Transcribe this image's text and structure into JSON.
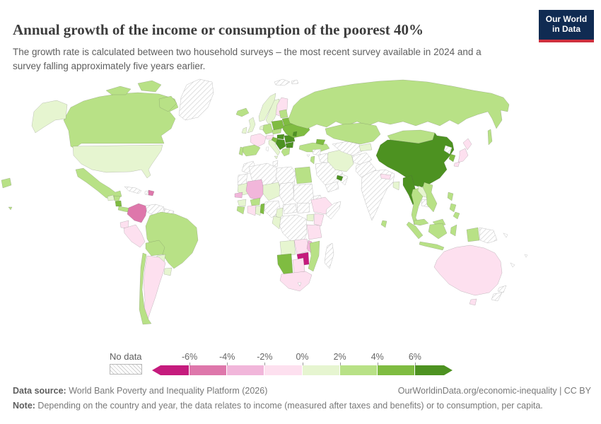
{
  "header": {
    "title": "Annual growth of the income or consumption of the poorest 40%",
    "subtitle": "The growth rate is calculated between two household surveys – the most recent survey available in 2024 and a survey falling approximately five years earlier.",
    "logo_line1": "Our World",
    "logo_line2": "in Data",
    "logo_bg": "#102b52",
    "logo_accent": "#cf303e"
  },
  "legend": {
    "no_data_label": "No data",
    "tick_labels": [
      "-6%",
      "-4%",
      "-2%",
      "0%",
      "2%",
      "4%",
      "6%"
    ]
  },
  "chart_data": {
    "type": "choropleth-map",
    "title": "Annual growth of the income or consumption of the poorest 40%",
    "unit": "% per year",
    "bin_edges_percent": [
      -6,
      -4,
      -2,
      0,
      2,
      4,
      6
    ],
    "bins": [
      "m6",
      "m6_m4",
      "m4_m2",
      "m2_0",
      "p0_2",
      "p2_4",
      "p4_6",
      "p6"
    ],
    "palette": {
      "m6": "#c51b7d",
      "m6_m4": "#de77ab",
      "m4_m2": "#f1b6da",
      "m2_0": "#fde0ef",
      "p0_2": "#e6f5d0",
      "p2_4": "#b8e186",
      "p4_6": "#7fbc41",
      "p6": "#4d9221",
      "nodata": "hatched-white"
    },
    "regions": {
      "greenland": "nodata",
      "canada": "p2_4",
      "canada-arctic-1": "p2_4",
      "canada-arctic-2": "p2_4",
      "canada-baffin": "p2_4",
      "alaska": "p0_2",
      "usa": "p0_2",
      "hawaii": "p2_4",
      "mexico": "p2_4",
      "guatemala": "p0_2",
      "honduras": "p2_4",
      "nicaragua": "p4_6",
      "costa-rica-panama": "p2_4",
      "cuba": "nodata",
      "haiti": "nodata",
      "dominican-republic": "m6_m4",
      "colombia": "m6_m4",
      "venezuela": "nodata",
      "guyanas": "nodata",
      "ecuador": "m2_0",
      "peru": "m2_0",
      "brazil": "p2_4",
      "bolivia": "p2_4",
      "paraguay": "p0_2",
      "uruguay": "p0_2",
      "argentina": "m2_0",
      "chile": "p2_4",
      "iceland": "p2_4",
      "norway": "p0_2",
      "sweden": "p0_2",
      "finland": "m2_0",
      "svalbard": "nodata",
      "united-kingdom": "p0_2",
      "ireland": "p0_2",
      "france": "m2_0",
      "spain": "p2_4",
      "portugal": "p2_4",
      "germany": "p2_4",
      "benelux": "p0_2",
      "italy": "p0_2",
      "switzerland-austria": "m2_0",
      "czechia-slovakia": "p2_4",
      "poland": "p4_6",
      "hungary": "p6",
      "romania": "p6",
      "serbia-balkans": "p6",
      "bulgaria": "p6",
      "croatia": "p4_6",
      "greece": "p2_4",
      "ukraine": "p4_6",
      "moldova": "p6",
      "belarus": "p4_6",
      "baltics": "p2_4",
      "russia": "p2_4",
      "sakhalin": "p2_4",
      "russia-west-fragment": "p2_4",
      "turkey": "p2_4",
      "caucasus": "p4_6",
      "syria": "nodata",
      "iraq": "nodata",
      "israel-jordan": "p2_4",
      "saudi-arabia": "nodata",
      "yemen": "nodata",
      "oman": "nodata",
      "uae": "p6",
      "iran": "p0_2",
      "turkmenistan-uzbekistan": "nodata",
      "kyrgyzstan-tajikistan": "p0_2",
      "kazakhstan": "p2_4",
      "afghanistan": "nodata",
      "pakistan": "nodata",
      "india": "nodata",
      "nepal": "m2_0",
      "bangladesh": "p0_2",
      "sri-lanka": "p2_4",
      "china": "p6",
      "hainan": "p6",
      "mongolia": "p2_4",
      "myanmar": "p6",
      "thailand": "p2_4",
      "laos": "p0_2",
      "cambodia": "nodata",
      "vietnam": "p2_4",
      "north-korea": "nodata",
      "south-korea": "p4_6",
      "japan-hokkaido": "m2_0",
      "japan-honshu": "m2_0",
      "japan-kyushu": "m2_0",
      "philippines-luzon": "p2_4",
      "philippines-visayas": "p2_4",
      "philippines-mindanao": "p2_4",
      "malaysia": "p2_4",
      "malaysia-borneo": "p2_4",
      "indonesia-sumatra": "p2_4",
      "indonesia-java": "p2_4",
      "indonesia-kalimantan": "p2_4",
      "indonesia-sulawesi": "p2_4",
      "indonesia-west-papua": "p2_4",
      "papua-new-guinea": "nodata",
      "australia": "m2_0",
      "tasmania": "m2_0",
      "new-zealand-north": "nodata",
      "new-zealand-south": "nodata",
      "morocco": "nodata",
      "western-sahara": "nodata",
      "algeria": "nodata",
      "tunisia": "nodata",
      "libya": "nodata",
      "egypt": "p2_4",
      "mauritania": "p0_2",
      "mali": "m4_m2",
      "niger": "p0_2",
      "chad": "nodata",
      "sudan": "nodata",
      "eritrea": "nodata",
      "senegal": "m4_m2",
      "guinea": "p0_2",
      "sierra-leone-liberia": "p2_4",
      "cote-divoire": "m2_0",
      "burkina-faso": "p2_4",
      "ghana": "p0_2",
      "togo-benin": "p4_6",
      "nigeria": "nodata",
      "cameroon": "p0_2",
      "central-african-republic": "nodata",
      "south-sudan": "nodata",
      "ethiopia": "m2_0",
      "somalia": "nodata",
      "uganda": "p0_2",
      "kenya": "m2_0",
      "drc": "nodata",
      "gabon-congo": "p0_2",
      "tanzania": "m2_0",
      "angola": "p0_2",
      "zambia": "m2_0",
      "malawi": "m4_m2",
      "mozambique": "p2_4",
      "zimbabwe": "m6",
      "namibia": "p4_6",
      "botswana": "m2_0",
      "south-africa": "m2_0",
      "lesotho": "nodata",
      "madagascar": "nodata"
    }
  },
  "footer": {
    "source_label": "Data source:",
    "source_text": " World Bank Poverty and Inequality Platform (2026)",
    "link": "OurWorldinData.org/economic-inequality | CC BY",
    "note_label": "Note:",
    "note_text": " Depending on the country and year, the data relates to income (measured after taxes and benefits) or to consumption, per capita."
  }
}
